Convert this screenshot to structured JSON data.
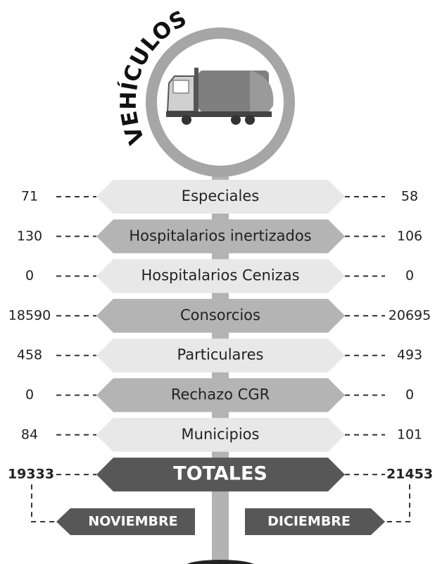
{
  "title": "VEHÍCULOS",
  "rows": [
    {
      "label": "Especiales",
      "noviembre": 71,
      "diciembre": 58
    },
    {
      "label": "Hospitalarios inertizados",
      "noviembre": 130,
      "diciembre": 106
    },
    {
      "label": "Hospitalarios Cenizas",
      "noviembre": 0,
      "diciembre": 0
    },
    {
      "label": "Consorcios",
      "noviembre": 18590,
      "diciembre": 20695
    },
    {
      "label": "Particulares",
      "noviembre": 458,
      "diciembre": 493
    },
    {
      "label": "Rechazo CGR",
      "noviembre": 0,
      "diciembre": 0
    },
    {
      "label": "Municipios",
      "noviembre": 84,
      "diciembre": 101
    }
  ],
  "totals": {
    "label": "TOTALES",
    "noviembre": 19333,
    "diciembre": 21453
  },
  "months": {
    "left": "NOVIEMBRE",
    "right": "DICIEMBRE"
  }
}
